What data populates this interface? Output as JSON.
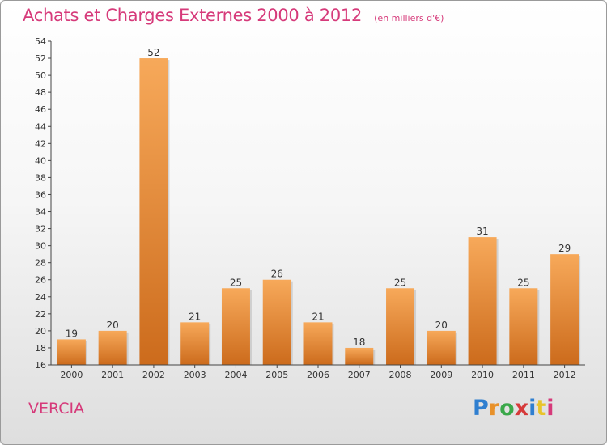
{
  "header": {
    "title": "Achats et Charges Externes 2000 à 2012",
    "subtitle": "(en milliers d'€)"
  },
  "footer": {
    "commune": "VERCIA",
    "logo_text": "Proxiti",
    "logo_colors": [
      "#2f7fd0",
      "#e8912a",
      "#3aa84a",
      "#d63a3a",
      "#2f7fd0",
      "#e8c42a",
      "#d63a7a"
    ]
  },
  "colors": {
    "title": "#d63a7a",
    "bar_light": "#f7a95a",
    "bar_dark": "#cc6b1c"
  },
  "chart_data": {
    "type": "bar",
    "title": "Achats et Charges Externes 2000 à 2012",
    "subtitle": "(en milliers d'€)",
    "categories": [
      "2000",
      "2001",
      "2002",
      "2003",
      "2004",
      "2005",
      "2006",
      "2007",
      "2008",
      "2009",
      "2010",
      "2011",
      "2012"
    ],
    "values": [
      19,
      20,
      52,
      21,
      25,
      26,
      21,
      18,
      25,
      20,
      31,
      25,
      29
    ],
    "ylim": [
      16,
      54
    ],
    "yticks": [
      16,
      18,
      20,
      22,
      24,
      26,
      28,
      30,
      32,
      34,
      36,
      38,
      40,
      42,
      44,
      46,
      48,
      50,
      52,
      54
    ],
    "grid": false,
    "data_labels": true
  }
}
